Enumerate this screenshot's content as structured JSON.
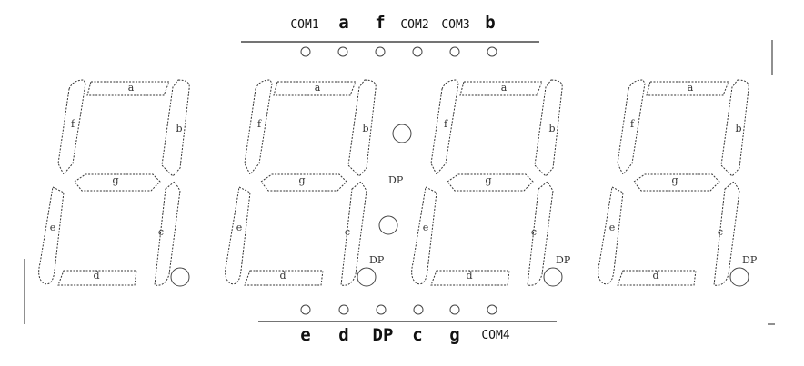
{
  "top_pins": [
    {
      "label": "COM1",
      "style": "small"
    },
    {
      "label": "a",
      "style": "big"
    },
    {
      "label": "f",
      "style": "big"
    },
    {
      "label": "COM2",
      "style": "small"
    },
    {
      "label": "COM3",
      "style": "small"
    },
    {
      "label": "b",
      "style": "big"
    }
  ],
  "bottom_pins": [
    {
      "label": "e",
      "style": "big"
    },
    {
      "label": "d",
      "style": "big"
    },
    {
      "label": "DP",
      "style": "big"
    },
    {
      "label": "c",
      "style": "big"
    },
    {
      "label": "g",
      "style": "big"
    },
    {
      "label": "COM4",
      "style": "small"
    }
  ],
  "digits": [
    {
      "segments": {
        "a": "a",
        "b": "b",
        "c": "c",
        "d": "d",
        "e": "e",
        "f": "f",
        "g": "g"
      },
      "dp": ""
    },
    {
      "segments": {
        "a": "a",
        "b": "b",
        "c": "c",
        "d": "d",
        "e": "e",
        "f": "f",
        "g": "g"
      },
      "dp": "DP"
    },
    {
      "segments": {
        "a": "a",
        "b": "b",
        "c": "c",
        "d": "d",
        "e": "e",
        "f": "f",
        "g": "g"
      },
      "dp": "DP"
    },
    {
      "segments": {
        "a": "a",
        "b": "b",
        "c": "c",
        "d": "d",
        "e": "e",
        "f": "f",
        "g": "g"
      },
      "dp": "DP"
    }
  ],
  "colon_label": "DP"
}
